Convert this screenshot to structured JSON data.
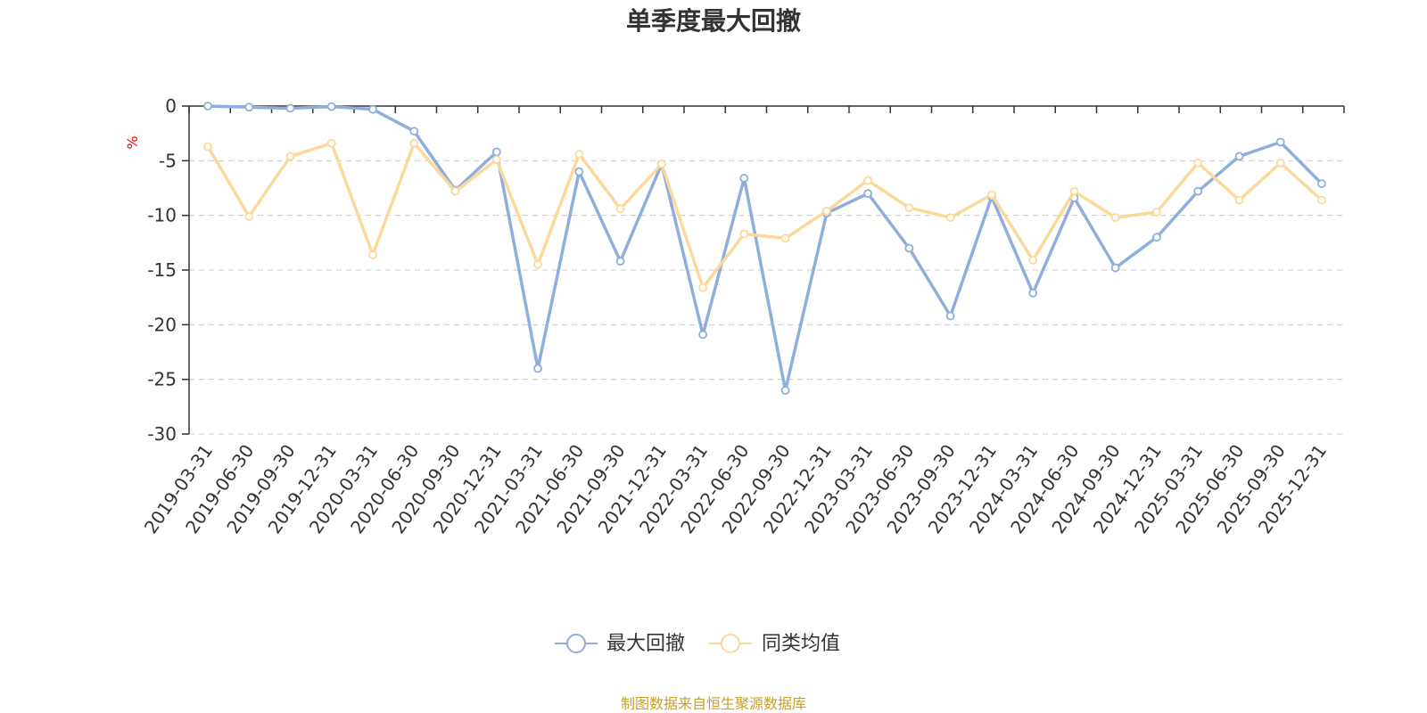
{
  "colors": {
    "series_1": "#8FAEDB",
    "series_2": "#FBD99B",
    "unit": "#FF0000",
    "source": "#C8A02A",
    "axis": "#333333",
    "grid": "#CCCCCC"
  },
  "source_note": "制图数据来自恒生聚源数据库",
  "chart_data": {
    "type": "line",
    "title": "单季度最大回撤",
    "ylabel": "%",
    "xlabel": "",
    "ylim": [
      -30,
      0
    ],
    "yticks": [
      0,
      -5,
      -10,
      -15,
      -20,
      -25,
      -30
    ],
    "grid": "horizontal-dashed",
    "legend_position": "bottom-center",
    "categories": [
      "2019-03-31",
      "2019-06-30",
      "2019-09-30",
      "2019-12-31",
      "2020-03-31",
      "2020-06-30",
      "2020-09-30",
      "2020-12-31",
      "2021-03-31",
      "2021-06-30",
      "2021-09-30",
      "2021-12-31",
      "2022-03-31",
      "2022-06-30",
      "2022-09-30",
      "2022-12-31",
      "2023-03-31",
      "2023-06-30",
      "2023-09-30",
      "2023-12-31",
      "2024-03-31",
      "2024-06-30",
      "2024-09-30",
      "2024-12-31",
      "2025-03-31",
      "2025-06-30",
      "2025-09-30",
      "2025-12-31"
    ],
    "series": [
      {
        "name": "最大回撤",
        "values": [
          0,
          -0.1,
          -0.2,
          -0.05,
          -0.3,
          -2.3,
          -7.7,
          -4.2,
          -24.0,
          -6.0,
          -14.2,
          -5.3,
          -20.9,
          -6.6,
          -26.0,
          -9.8,
          -8.0,
          -13.0,
          -19.2,
          -8.3,
          -17.1,
          -8.4,
          -14.8,
          -12.0,
          -7.8,
          -4.6,
          -3.3,
          -7.1
        ]
      },
      {
        "name": "同类均值",
        "values": [
          -3.7,
          -10.1,
          -4.6,
          -3.4,
          -13.6,
          -3.4,
          -7.8,
          -4.9,
          -14.5,
          -4.4,
          -9.4,
          -5.3,
          -16.6,
          -11.7,
          -12.1,
          -9.6,
          -6.8,
          -9.3,
          -10.2,
          -8.1,
          -14.1,
          -7.8,
          -10.2,
          -9.7,
          -5.2,
          -8.6,
          -5.2,
          -8.6
        ]
      }
    ]
  }
}
